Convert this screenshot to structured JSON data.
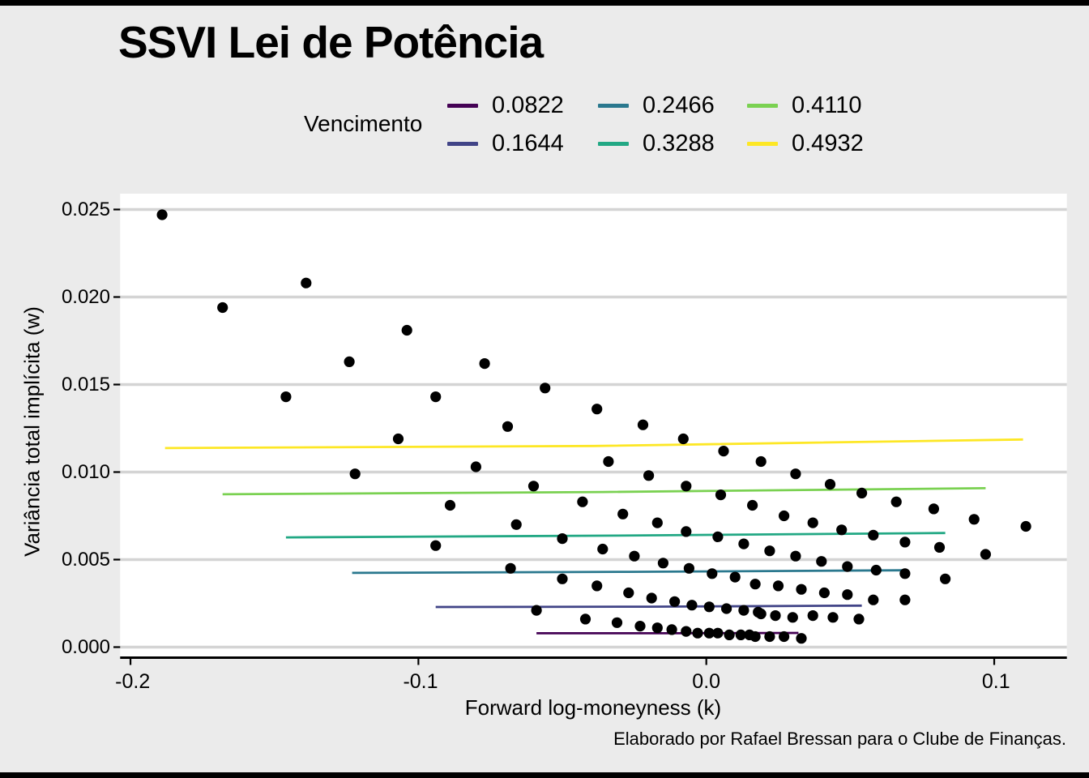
{
  "title": "SSVI Lei de Potência",
  "legend": {
    "title": "Vencimento"
  },
  "axes": {
    "x": {
      "label": "Forward log-moneyness (k)",
      "ticks": [
        "-0.2",
        "-0.1",
        "0.0",
        "0.1"
      ]
    },
    "y": {
      "label": "Variância total implícita (w)",
      "ticks": [
        "0.000",
        "0.005",
        "0.010",
        "0.015",
        "0.020",
        "0.025"
      ]
    }
  },
  "caption": "Elaborado por Rafael Bressan para o Clube de Finanças.",
  "colors": {
    "background": "#EBEBEB",
    "panel": "#FFFFFF",
    "gridline": "#D4D4D4",
    "axis": "#000000",
    "point": "#000000"
  },
  "chart_data": {
    "type": "scatter",
    "title": "SSVI Lei de Potência",
    "xlabel": "Forward log-moneyness (k)",
    "ylabel": "Variância total implícita (w)",
    "legend_title": "Vencimento",
    "legend_position": "top",
    "grid": "horizontal-only",
    "xlim": [
      -0.204,
      0.125
    ],
    "ylim": [
      0.0,
      0.0259
    ],
    "x_ticks": [
      -0.2,
      -0.1,
      0.0,
      0.1
    ],
    "y_ticks": [
      0.0,
      0.005,
      0.01,
      0.015,
      0.02,
      0.025
    ],
    "points_label": "market total implied variance (black dots)",
    "points": [
      [
        -0.189,
        0.0247
      ],
      [
        -0.168,
        0.0194
      ],
      [
        -0.139,
        0.0208
      ],
      [
        -0.124,
        0.0163
      ],
      [
        -0.146,
        0.0143
      ],
      [
        -0.104,
        0.0181
      ],
      [
        -0.107,
        0.0119
      ],
      [
        -0.122,
        0.0099
      ],
      [
        -0.094,
        0.0143
      ],
      [
        -0.094,
        0.0058
      ],
      [
        -0.077,
        0.0162
      ],
      [
        -0.056,
        0.0148
      ],
      [
        -0.038,
        0.0136
      ],
      [
        -0.069,
        0.0126
      ],
      [
        -0.022,
        0.0127
      ],
      [
        -0.008,
        0.0119
      ],
      [
        0.006,
        0.0112
      ],
      [
        0.019,
        0.0106
      ],
      [
        -0.08,
        0.0103
      ],
      [
        -0.034,
        0.0106
      ],
      [
        -0.02,
        0.0098
      ],
      [
        -0.06,
        0.0092
      ],
      [
        -0.007,
        0.0092
      ],
      [
        0.005,
        0.0087
      ],
      [
        -0.089,
        0.0081
      ],
      [
        -0.043,
        0.0083
      ],
      [
        0.016,
        0.0081
      ],
      [
        -0.029,
        0.0076
      ],
      [
        -0.066,
        0.007
      ],
      [
        -0.017,
        0.0071
      ],
      [
        -0.007,
        0.0066
      ],
      [
        -0.05,
        0.0062
      ],
      [
        0.004,
        0.0063
      ],
      [
        0.013,
        0.0059
      ],
      [
        -0.036,
        0.0056
      ],
      [
        -0.025,
        0.0052
      ],
      [
        -0.015,
        0.0048
      ],
      [
        -0.006,
        0.0045
      ],
      [
        -0.068,
        0.0045
      ],
      [
        0.002,
        0.0042
      ],
      [
        0.01,
        0.004
      ],
      [
        -0.05,
        0.0039
      ],
      [
        -0.038,
        0.0035
      ],
      [
        -0.027,
        0.0031
      ],
      [
        -0.019,
        0.0028
      ],
      [
        -0.011,
        0.0026
      ],
      [
        -0.005,
        0.0024
      ],
      [
        0.001,
        0.0023
      ],
      [
        0.007,
        0.0022
      ],
      [
        0.013,
        0.0021
      ],
      [
        0.018,
        0.002
      ],
      [
        -0.059,
        0.0021
      ],
      [
        -0.042,
        0.0016
      ],
      [
        -0.031,
        0.0014
      ],
      [
        -0.023,
        0.0012
      ],
      [
        -0.017,
        0.0011
      ],
      [
        -0.012,
        0.001
      ],
      [
        -0.007,
        0.0009
      ],
      [
        -0.003,
        0.0008
      ],
      [
        0.001,
        0.0008
      ],
      [
        0.004,
        0.0008
      ],
      [
        0.008,
        0.0007
      ],
      [
        0.012,
        0.0007
      ],
      [
        0.015,
        0.0007
      ],
      [
        0.031,
        0.0099
      ],
      [
        0.043,
        0.0093
      ],
      [
        0.054,
        0.0088
      ],
      [
        0.066,
        0.0083
      ],
      [
        0.079,
        0.0079
      ],
      [
        0.093,
        0.0073
      ],
      [
        0.111,
        0.0069
      ],
      [
        0.027,
        0.0075
      ],
      [
        0.037,
        0.0071
      ],
      [
        0.047,
        0.0067
      ],
      [
        0.058,
        0.0064
      ],
      [
        0.069,
        0.006
      ],
      [
        0.081,
        0.0057
      ],
      [
        0.097,
        0.0053
      ],
      [
        0.022,
        0.0055
      ],
      [
        0.031,
        0.0052
      ],
      [
        0.04,
        0.0049
      ],
      [
        0.049,
        0.0046
      ],
      [
        0.059,
        0.0044
      ],
      [
        0.069,
        0.0042
      ],
      [
        0.083,
        0.0039
      ],
      [
        0.025,
        0.0035
      ],
      [
        0.033,
        0.0033
      ],
      [
        0.041,
        0.0031
      ],
      [
        0.049,
        0.003
      ],
      [
        0.058,
        0.0027
      ],
      [
        0.069,
        0.0027
      ],
      [
        0.017,
        0.0036
      ],
      [
        0.019,
        0.0019
      ],
      [
        0.024,
        0.0018
      ],
      [
        0.03,
        0.0017
      ],
      [
        0.037,
        0.0018
      ],
      [
        0.044,
        0.0017
      ],
      [
        0.053,
        0.0016
      ],
      [
        0.017,
        0.0006
      ],
      [
        0.022,
        0.0006
      ],
      [
        0.027,
        0.0006
      ],
      [
        0.033,
        0.0005
      ]
    ],
    "series": [
      {
        "name": "0.0822",
        "color": "#440154",
        "line": [
          [
            -0.059,
            0.00079
          ],
          [
            -0.013,
            0.00079
          ],
          [
            0.032,
            0.00081
          ]
        ]
      },
      {
        "name": "0.1644",
        "color": "#414487",
        "line": [
          [
            -0.094,
            0.00229
          ],
          [
            -0.02,
            0.00231
          ],
          [
            0.054,
            0.00237
          ]
        ]
      },
      {
        "name": "0.2466",
        "color": "#2a788e",
        "line": [
          [
            -0.123,
            0.00424
          ],
          [
            -0.027,
            0.0043
          ],
          [
            0.069,
            0.00439
          ]
        ]
      },
      {
        "name": "0.3288",
        "color": "#22a884",
        "line": [
          [
            -0.146,
            0.00627
          ],
          [
            -0.031,
            0.00637
          ],
          [
            0.083,
            0.00652
          ]
        ]
      },
      {
        "name": "0.4110",
        "color": "#7ad151",
        "line": [
          [
            -0.168,
            0.00873
          ],
          [
            -0.036,
            0.00886
          ],
          [
            0.097,
            0.00908
          ]
        ]
      },
      {
        "name": "0.4932",
        "color": "#fde725",
        "line": [
          [
            -0.188,
            0.01137
          ],
          [
            -0.039,
            0.01149
          ],
          [
            0.11,
            0.01186
          ]
        ]
      }
    ]
  }
}
